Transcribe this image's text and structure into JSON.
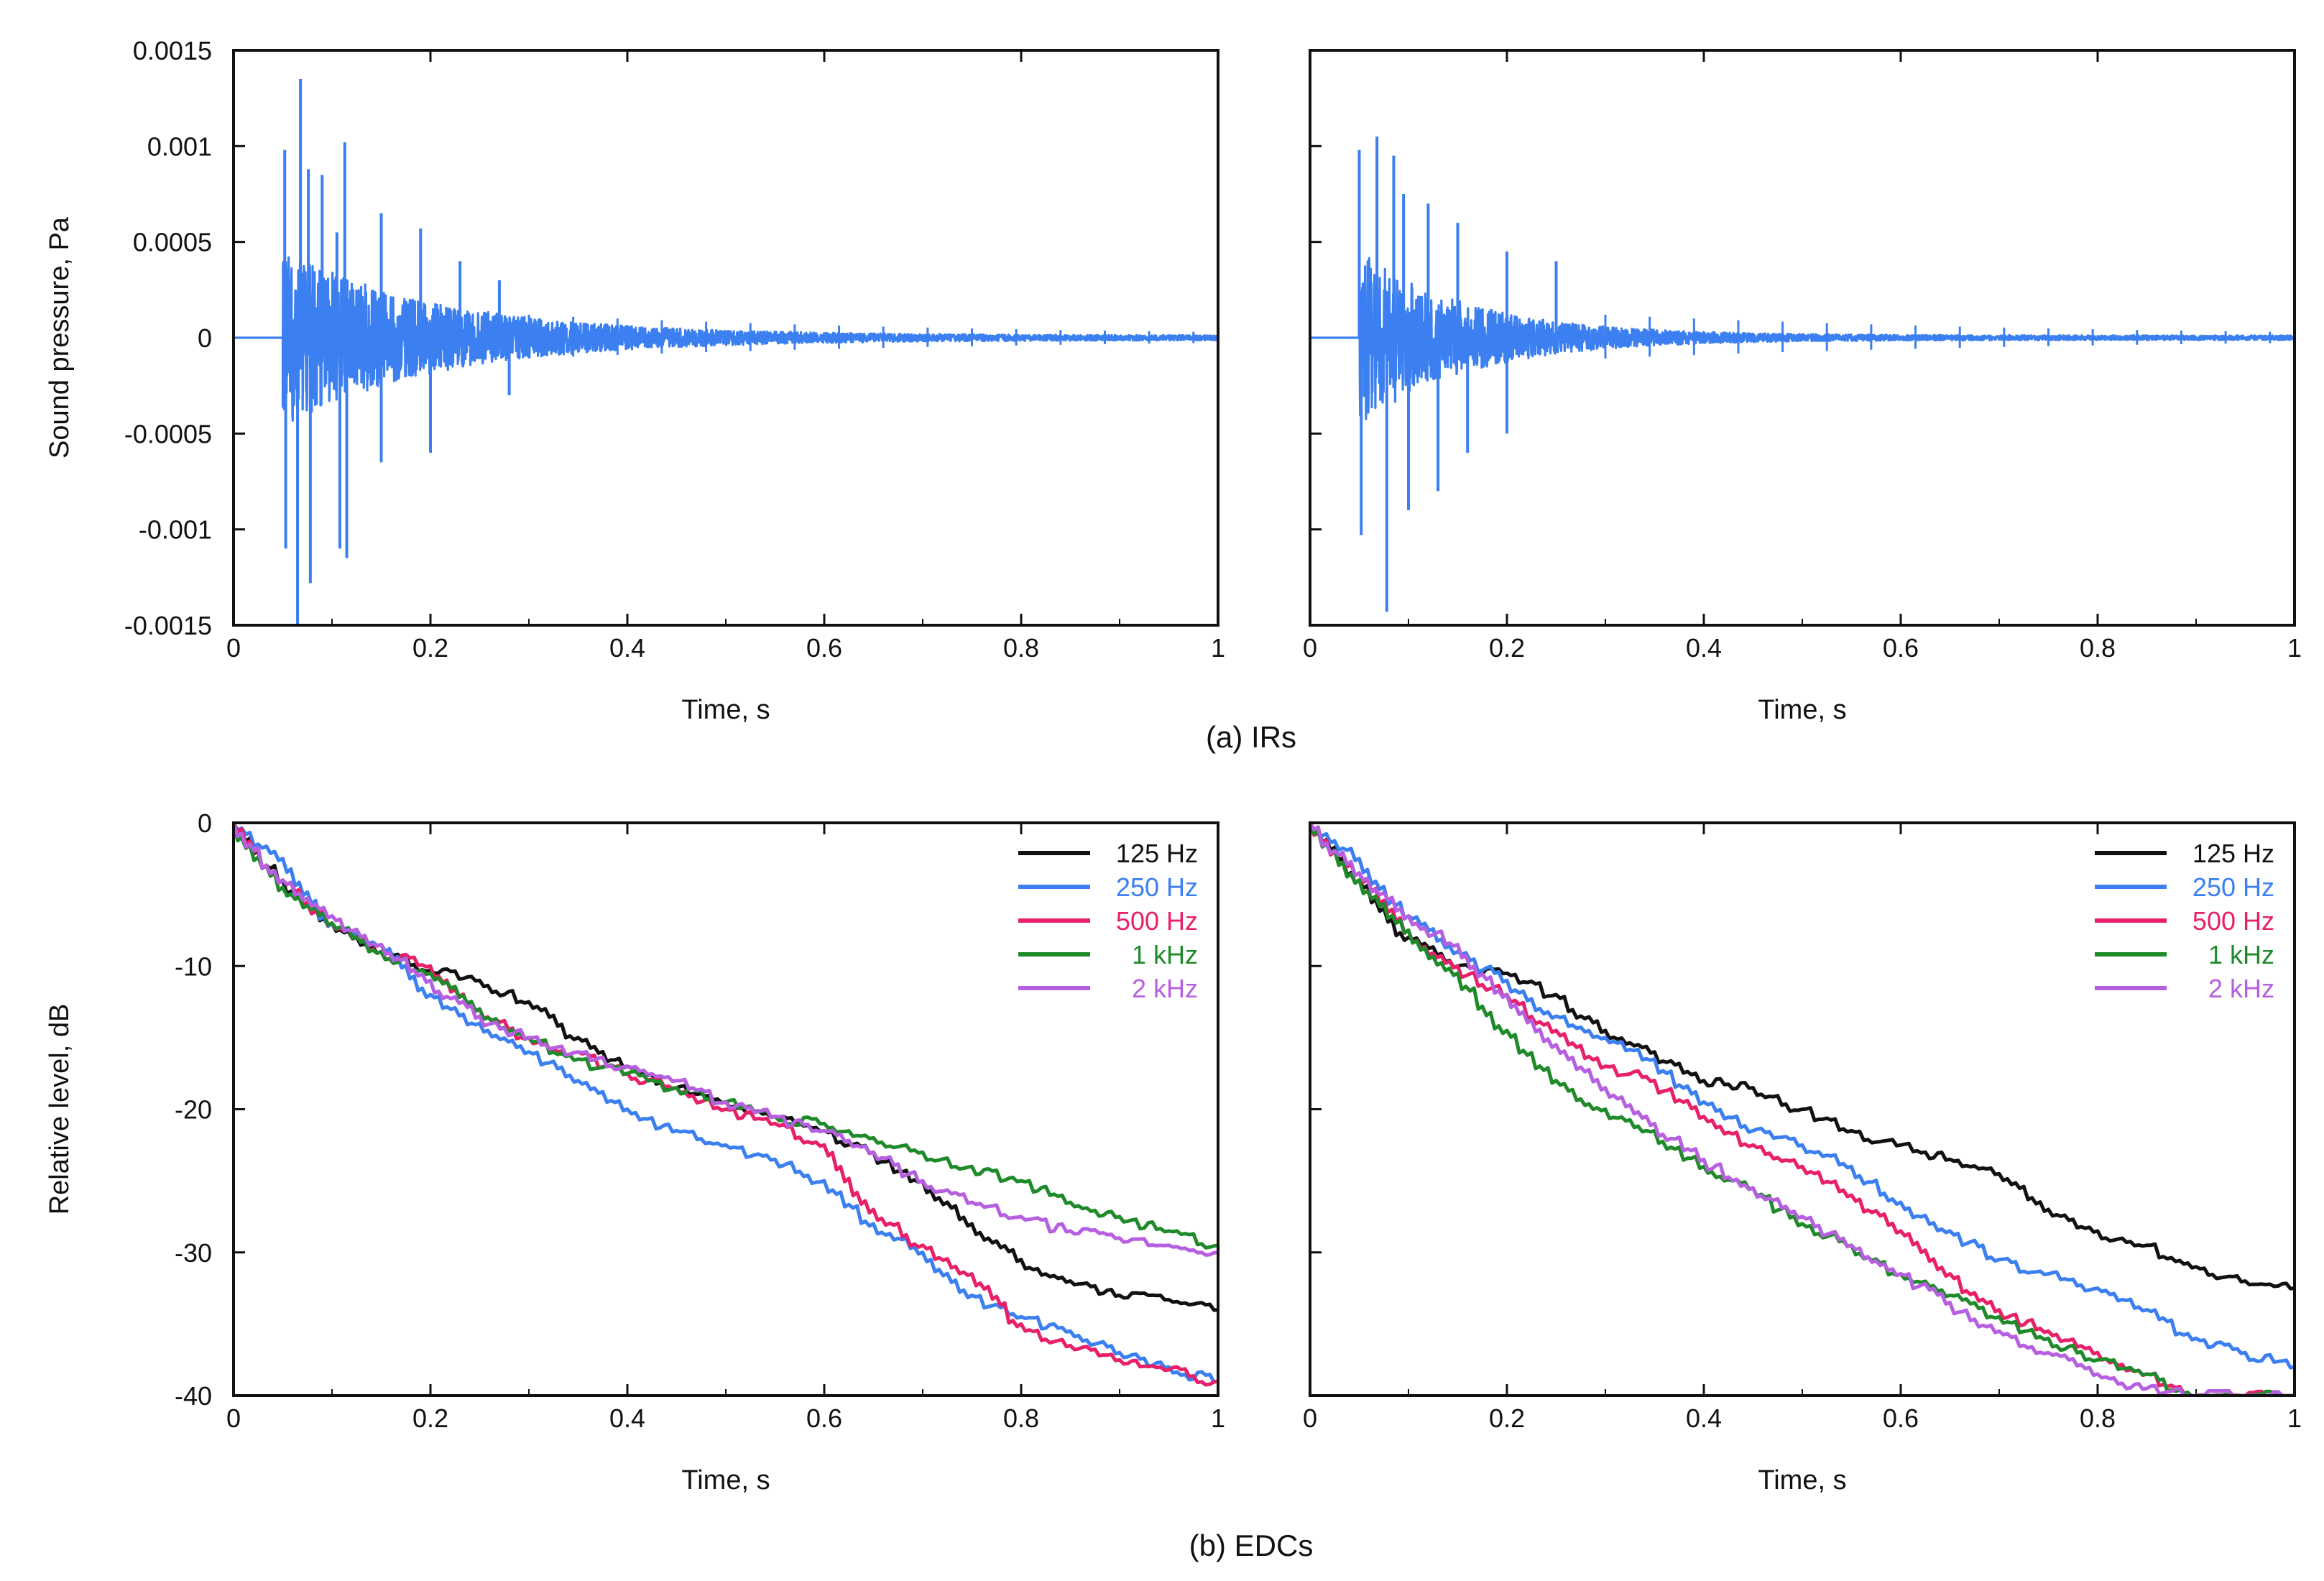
{
  "figure": {
    "caption_a": "(a) IRs",
    "caption_b": "(b) EDCs",
    "colors": {
      "ir": "#3b7ff0",
      "125 Hz": "#111111",
      "250 Hz": "#3b7ff0",
      "500 Hz": "#e8206a",
      "1 kHz": "#1f8a2a",
      "2 kHz": "#b65fe0"
    }
  },
  "chart_data": [
    {
      "type": "line",
      "id": "ir-left",
      "title": "",
      "xlabel": "Time, s",
      "ylabel": "Sound pressure, Pa",
      "xlim": [
        0,
        1
      ],
      "ylim": [
        -0.0015,
        0.0015
      ],
      "xticks": [
        0,
        0.2,
        0.4,
        0.6,
        0.8,
        1
      ],
      "xtick_labels": [
        "0",
        "0.2",
        "0.4",
        "0.6",
        "0.8",
        "1"
      ],
      "yticks": [
        0.0015,
        0.001,
        0.0005,
        0,
        -0.0005,
        -0.001,
        -0.0015
      ],
      "ytick_labels": [
        "0.0015",
        "0.001",
        "0.0005",
        "0",
        "-0.0005",
        "-0.001",
        "-0.0015"
      ],
      "onset": 0.05,
      "peaks": [
        {
          "t": 0.052,
          "v": 0.00098
        },
        {
          "t": 0.053,
          "v": -0.0011
        },
        {
          "t": 0.068,
          "v": 0.00135
        },
        {
          "t": 0.065,
          "v": -0.0015
        },
        {
          "t": 0.076,
          "v": 0.00088
        },
        {
          "t": 0.078,
          "v": -0.00128
        },
        {
          "t": 0.09,
          "v": 0.00085
        },
        {
          "t": 0.105,
          "v": 0.00055
        },
        {
          "t": 0.108,
          "v": -0.0011
        },
        {
          "t": 0.113,
          "v": 0.00102
        },
        {
          "t": 0.115,
          "v": -0.00115
        },
        {
          "t": 0.15,
          "v": 0.00065
        },
        {
          "t": 0.15,
          "v": -0.00065
        },
        {
          "t": 0.19,
          "v": 0.00057
        },
        {
          "t": 0.2,
          "v": -0.0006
        },
        {
          "t": 0.23,
          "v": 0.0004
        },
        {
          "t": 0.27,
          "v": 0.0003
        },
        {
          "t": 0.28,
          "v": -0.0003
        }
      ],
      "series": [
        {
          "name": "IR",
          "color_key": "ir"
        }
      ]
    },
    {
      "type": "line",
      "id": "ir-right",
      "title": "",
      "xlabel": "Time, s",
      "ylabel": "",
      "xlim": [
        0,
        1
      ],
      "ylim": [
        -0.0015,
        0.0015
      ],
      "xticks": [
        0,
        0.2,
        0.4,
        0.6,
        0.8,
        1
      ],
      "xtick_labels": [
        "0",
        "0.2",
        "0.4",
        "0.6",
        "0.8",
        "1"
      ],
      "yticks": [
        0.0015,
        0.001,
        0.0005,
        0,
        -0.0005,
        -0.001,
        -0.0015
      ],
      "ytick_labels": [],
      "onset": 0.05,
      "peaks": [
        {
          "t": 0.05,
          "v": 0.00098
        },
        {
          "t": 0.052,
          "v": -0.00103
        },
        {
          "t": 0.068,
          "v": 0.00105
        },
        {
          "t": 0.078,
          "v": -0.00143
        },
        {
          "t": 0.085,
          "v": 0.00095
        },
        {
          "t": 0.095,
          "v": 0.00075
        },
        {
          "t": 0.1,
          "v": -0.0009
        },
        {
          "t": 0.12,
          "v": 0.0007
        },
        {
          "t": 0.13,
          "v": -0.0008
        },
        {
          "t": 0.15,
          "v": 0.0006
        },
        {
          "t": 0.16,
          "v": -0.0006
        },
        {
          "t": 0.2,
          "v": 0.00045
        },
        {
          "t": 0.2,
          "v": -0.0005
        },
        {
          "t": 0.25,
          "v": 0.0004
        }
      ],
      "series": [
        {
          "name": "IR",
          "color_key": "ir"
        }
      ]
    },
    {
      "type": "line",
      "id": "edc-left",
      "title": "",
      "xlabel": "Time, s",
      "ylabel": "Relative level, dB",
      "xlim": [
        0,
        1
      ],
      "ylim": [
        -40,
        0
      ],
      "xticks": [
        0,
        0.2,
        0.4,
        0.6,
        0.8,
        1
      ],
      "xtick_labels": [
        "0",
        "0.2",
        "0.4",
        "0.6",
        "0.8",
        "1"
      ],
      "yticks": [
        0,
        -10,
        -20,
        -30,
        -40
      ],
      "ytick_labels": [
        "0",
        "-10",
        "-20",
        "-30",
        "-40"
      ],
      "legend": [
        "125 Hz",
        "250 Hz",
        "500 Hz",
        "1 kHz",
        "2 kHz"
      ],
      "legend_position": "top-right",
      "x": [
        0,
        0.05,
        0.1,
        0.15,
        0.2,
        0.25,
        0.3,
        0.35,
        0.4,
        0.45,
        0.5,
        0.55,
        0.6,
        0.65,
        0.7,
        0.75,
        0.8,
        0.85,
        0.9,
        0.95,
        1.0
      ],
      "series": [
        {
          "name": "125 Hz",
          "values": [
            0,
            -4,
            -7,
            -9,
            -10.3,
            -11,
            -12.5,
            -15,
            -17,
            -18.5,
            -19.5,
            -20.5,
            -21.5,
            -23,
            -25,
            -28,
            -30.5,
            -32,
            -33,
            -33.3,
            -34
          ]
        },
        {
          "name": "250 Hz",
          "values": [
            0,
            -2.5,
            -7,
            -8.5,
            -12,
            -14,
            -16,
            -18,
            -20,
            -21.5,
            -22.5,
            -23.5,
            -25,
            -28,
            -30,
            -33,
            -34.5,
            -35.5,
            -37,
            -38,
            -39
          ]
        },
        {
          "name": "500 Hz",
          "values": [
            0,
            -4,
            -7,
            -9,
            -10,
            -13,
            -15,
            -16,
            -17.5,
            -18.5,
            -20,
            -21,
            -22.5,
            -27,
            -29.5,
            -31.5,
            -35,
            -36.5,
            -37.5,
            -38.2,
            -39
          ]
        },
        {
          "name": "1 kHz",
          "values": [
            0,
            -4.5,
            -7,
            -9,
            -10.5,
            -13,
            -15,
            -16.5,
            -17.5,
            -18.5,
            -19.5,
            -20.5,
            -21,
            -22,
            -23,
            -24,
            -25,
            -26.5,
            -27.5,
            -28.5,
            -29.5
          ]
        },
        {
          "name": "2 kHz",
          "values": [
            0,
            -4,
            -6.5,
            -8.5,
            -11,
            -13.5,
            -15,
            -16,
            -17,
            -18,
            -19.5,
            -20.5,
            -21.5,
            -23,
            -25,
            -26.5,
            -27.5,
            -28.5,
            -29,
            -29.5,
            -30
          ]
        }
      ]
    },
    {
      "type": "line",
      "id": "edc-right",
      "title": "",
      "xlabel": "Time, s",
      "ylabel": "",
      "xlim": [
        0,
        1
      ],
      "ylim": [
        -40,
        0
      ],
      "xticks": [
        0,
        0.2,
        0.4,
        0.6,
        0.8,
        1
      ],
      "xtick_labels": [
        "0",
        "0.2",
        "0.4",
        "0.6",
        "0.8",
        "1"
      ],
      "yticks": [
        0,
        -10,
        -20,
        -30,
        -40
      ],
      "ytick_labels": [],
      "legend": [
        "125 Hz",
        "250 Hz",
        "500 Hz",
        "1 kHz",
        "2 kHz"
      ],
      "legend_position": "top-right",
      "x": [
        0,
        0.05,
        0.1,
        0.15,
        0.2,
        0.25,
        0.3,
        0.35,
        0.4,
        0.45,
        0.5,
        0.55,
        0.6,
        0.65,
        0.7,
        0.75,
        0.8,
        0.85,
        0.9,
        0.95,
        1.0
      ],
      "series": [
        {
          "name": "125 Hz",
          "values": [
            0,
            -4,
            -8,
            -10,
            -10.5,
            -12,
            -14.5,
            -16,
            -18,
            -18.5,
            -20,
            -21.5,
            -22.5,
            -23.5,
            -24.5,
            -27,
            -28.5,
            -29.5,
            -31,
            -32,
            -32.5
          ]
        },
        {
          "name": "250 Hz",
          "values": [
            0,
            -2.5,
            -6.5,
            -9,
            -11,
            -13.5,
            -15,
            -16.5,
            -19.5,
            -21.5,
            -22.5,
            -24,
            -26.5,
            -28.5,
            -30.5,
            -31.5,
            -32.5,
            -34,
            -36,
            -37,
            -38
          ]
        },
        {
          "name": "500 Hz",
          "values": [
            0,
            -3.5,
            -7.5,
            -10,
            -12,
            -14.5,
            -17,
            -18,
            -20.5,
            -22.5,
            -24,
            -26,
            -28.5,
            -31.5,
            -34,
            -35.5,
            -37,
            -38.5,
            -40,
            -40,
            -40
          ]
        },
        {
          "name": "1 kHz",
          "values": [
            0,
            -4,
            -7.5,
            -10.5,
            -14.5,
            -18,
            -20,
            -21.5,
            -24,
            -25.5,
            -28,
            -29.5,
            -31.5,
            -33,
            -34.5,
            -36,
            -37.5,
            -38.5,
            -40,
            -40,
            -40
          ]
        },
        {
          "name": "2 kHz",
          "values": [
            0,
            -3.5,
            -6.5,
            -8.5,
            -12,
            -15.5,
            -18.5,
            -21,
            -23.5,
            -25.5,
            -27.5,
            -29.5,
            -31.5,
            -33.5,
            -35.5,
            -37,
            -38.5,
            -39.5,
            -40,
            -40,
            -40
          ]
        }
      ]
    }
  ]
}
